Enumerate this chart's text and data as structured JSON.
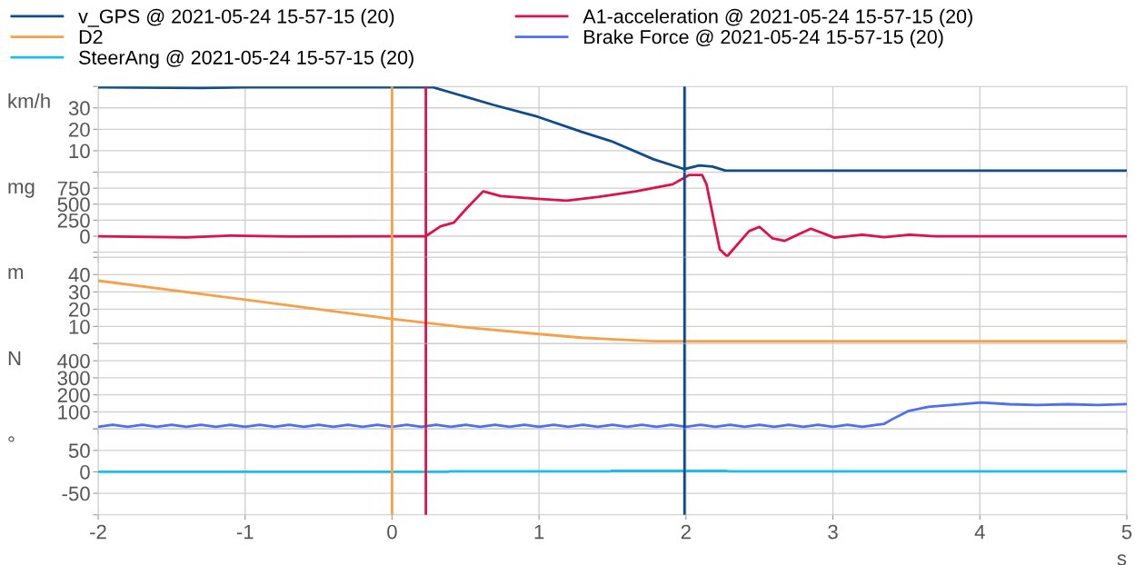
{
  "chart_data": [
    {
      "type": "line",
      "ylabel": "km/h",
      "xlim": [
        -2,
        5
      ],
      "xticks": [
        -2,
        -1,
        0,
        1,
        2,
        3,
        4,
        5
      ],
      "ylim": [
        0,
        40
      ],
      "yticks": [
        {
          "value": 0,
          "label": null
        },
        10,
        20,
        30,
        {
          "value": 40,
          "label": null
        }
      ],
      "grid": true,
      "legend": "top",
      "tick_labels": "y",
      "series": [
        {
          "name": "v_GPS @ 2021-05-24 15-57-15 (20)",
          "color": "#0e4c8c",
          "x": [
            -2,
            -1.3,
            -1.0,
            0,
            0.28,
            0.69,
            0.99,
            1.29,
            1.49,
            1.78,
            1.99,
            2.09,
            2.18,
            2.27,
            5
          ],
          "values": [
            39.6,
            39.3,
            39.6,
            39.6,
            39.6,
            31.4,
            25.9,
            18.8,
            14.5,
            6.0,
            1.4,
            3.1,
            2.6,
            0.7,
            0.7
          ]
        }
      ],
      "ref_lines": [
        {
          "axis": "x",
          "value": 0,
          "color": "#f7a048"
        },
        {
          "axis": "x",
          "value": 0.23,
          "color": "#e0104a"
        },
        {
          "axis": "x",
          "value": 1.99,
          "color": "#0e4c8c"
        }
      ]
    },
    {
      "type": "line",
      "ylabel": "mg",
      "xlim": [
        -2,
        5
      ],
      "xticks": [
        -2,
        -1,
        0,
        1,
        2,
        3,
        4,
        5
      ],
      "ylim": [
        -330,
        1000
      ],
      "yticks": [
        {
          "value": -250,
          "label": null
        },
        0,
        250,
        500,
        750,
        {
          "value": 1000,
          "label": null
        }
      ],
      "grid": true,
      "tick_labels": "y",
      "series": [
        {
          "name": "A1-acceleration @ 2021-05-24 15-57-15 (20)",
          "color": "#e0104a",
          "x": [
            -2,
            -1.4,
            -1.1,
            -0.7,
            0,
            0.23,
            0.33,
            0.42,
            0.51,
            0.62,
            0.74,
            0.99,
            1.19,
            1.41,
            1.66,
            1.91,
            2.02,
            2.11,
            2.14,
            2.23,
            2.28,
            2.43,
            2.5,
            2.59,
            2.67,
            2.85,
            3.01,
            3.2,
            3.35,
            3.52,
            3.7,
            5
          ],
          "values": [
            0,
            -20,
            10,
            -5,
            0,
            0,
            154,
            212,
            440,
            700,
            625,
            585,
            555,
            615,
            700,
            810,
            955,
            955,
            810,
            -205,
            -315,
            80,
            146,
            -34,
            -73,
            118,
            -22,
            22,
            -17,
            22,
            0,
            0
          ]
        }
      ],
      "ref_lines": [
        {
          "axis": "x",
          "value": 0,
          "color": "#f7a048"
        },
        {
          "axis": "x",
          "value": 0.23,
          "color": "#e0104a"
        },
        {
          "axis": "x",
          "value": 1.99,
          "color": "#0e4c8c"
        }
      ]
    },
    {
      "type": "line",
      "ylabel": "m",
      "xlim": [
        -2,
        5
      ],
      "xticks": [
        -2,
        -1,
        0,
        1,
        2,
        3,
        4,
        5
      ],
      "ylim": [
        0,
        50
      ],
      "yticks": [
        {
          "value": 0,
          "label": null
        },
        10,
        20,
        30,
        40,
        {
          "value": 50,
          "label": null
        }
      ],
      "grid": true,
      "tick_labels": "y",
      "series": [
        {
          "name": "D2",
          "color": "#f7a048",
          "x": [
            -2,
            -1.0,
            0,
            0.22,
            0.5,
            1.0,
            1.29,
            1.48,
            1.78,
            5
          ],
          "values": [
            36.5,
            25.5,
            14.4,
            12.2,
            9.5,
            5.6,
            3.5,
            2.6,
            1.5,
            1.5
          ]
        }
      ],
      "ref_lines": [
        {
          "axis": "x",
          "value": 0,
          "color": "#f7a048"
        },
        {
          "axis": "x",
          "value": 0.23,
          "color": "#e0104a"
        },
        {
          "axis": "x",
          "value": 1.99,
          "color": "#0e4c8c"
        }
      ]
    },
    {
      "type": "line",
      "ylabel": "N",
      "xlim": [
        -2,
        5
      ],
      "xticks": [
        -2,
        -1,
        0,
        1,
        2,
        3,
        4,
        5
      ],
      "ylim": [
        0,
        500
      ],
      "yticks": [
        {
          "value": 0,
          "label": null
        },
        100,
        200,
        300,
        400,
        {
          "value": 500,
          "label": null
        }
      ],
      "grid": true,
      "tick_labels": "y",
      "series": [
        {
          "name": "Brake Force @ 2021-05-24 15-57-15 (20)",
          "color": "#4d6ef5",
          "x": [
            -2,
            -1.9,
            -1.8,
            -1.7,
            -1.6,
            -1.5,
            -1.4,
            -1.3,
            -1.2,
            -1.1,
            -1.0,
            -0.9,
            -0.8,
            -0.7,
            -0.6,
            -0.5,
            -0.4,
            -0.3,
            -0.2,
            -0.1,
            0,
            0.1,
            0.2,
            0.3,
            0.4,
            0.5,
            0.6,
            0.7,
            0.8,
            0.9,
            1.0,
            1.1,
            1.2,
            1.3,
            1.4,
            1.5,
            1.6,
            1.7,
            1.8,
            1.9,
            2.0,
            2.1,
            2.2,
            2.3,
            2.4,
            2.5,
            2.6,
            2.7,
            2.8,
            2.9,
            3.0,
            3.1,
            3.2,
            3.3,
            3.35,
            3.4,
            3.51,
            3.65,
            3.8,
            4.01,
            4.2,
            4.39,
            4.6,
            4.8,
            5.0
          ],
          "values": [
            12,
            24,
            12,
            24,
            12,
            24,
            12,
            24,
            12,
            24,
            12,
            24,
            12,
            24,
            12,
            24,
            12,
            24,
            12,
            24,
            12,
            24,
            12,
            24,
            12,
            24,
            12,
            24,
            12,
            24,
            12,
            24,
            12,
            24,
            12,
            24,
            12,
            24,
            12,
            24,
            12,
            24,
            12,
            24,
            12,
            24,
            12,
            24,
            12,
            24,
            12,
            24,
            12,
            24,
            30,
            55,
            104,
            130,
            140,
            155,
            145,
            140,
            145,
            140,
            146
          ]
        }
      ],
      "ref_lines": [
        {
          "axis": "x",
          "value": 0,
          "color": "#f7a048"
        },
        {
          "axis": "x",
          "value": 0.23,
          "color": "#e0104a"
        },
        {
          "axis": "x",
          "value": 1.99,
          "color": "#0e4c8c"
        }
      ]
    },
    {
      "type": "line",
      "ylabel": "°",
      "xlabel": "s",
      "xlim": [
        -2,
        5
      ],
      "xticks": [
        -2,
        -1,
        0,
        1,
        2,
        3,
        4,
        5
      ],
      "ylim": [
        -100,
        100
      ],
      "yticks": [
        {
          "value": -100,
          "label": null
        },
        -50,
        0,
        50,
        {
          "value": 100,
          "label": null
        }
      ],
      "grid": true,
      "series": [
        {
          "name": "SteerAng @ 2021-05-24 15-57-15 (20)",
          "color": "#19bdf0",
          "x": [
            -2,
            0.38,
            0.39,
            1.48,
            1.49,
            2.28,
            2.29,
            5
          ],
          "values": [
            0,
            0,
            1,
            1,
            2,
            2,
            1,
            1
          ]
        }
      ],
      "ref_lines": [
        {
          "axis": "x",
          "value": 0,
          "color": "#f7a048"
        },
        {
          "axis": "x",
          "value": 0.23,
          "color": "#e0104a"
        },
        {
          "axis": "x",
          "value": 1.99,
          "color": "#0e4c8c"
        }
      ]
    }
  ]
}
